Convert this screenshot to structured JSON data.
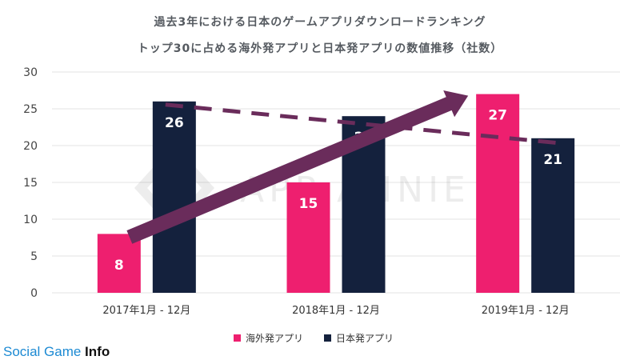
{
  "title_lines": [
    "過去3年における日本のゲームアプリダウンロードランキング",
    "トップ30に占める海外発アプリと日本発アプリの数値推移（社数）"
  ],
  "watermark": "APP ANNIE",
  "branding": {
    "part1": "Social Game ",
    "part2": "Info"
  },
  "colors": {
    "overseas": "#ee1f6f",
    "japan": "#14213d",
    "arrow": "#6a2c5b",
    "grid": "#e3e3e3"
  },
  "chart_data": {
    "type": "bar",
    "categories": [
      "2017年1月 - 12月",
      "2018年1月 - 12月",
      "2019年1月 - 12月"
    ],
    "series": [
      {
        "name": "海外発アプリ",
        "values": [
          8,
          15,
          27
        ]
      },
      {
        "name": "日本発アプリ",
        "values": [
          26,
          24,
          21
        ]
      }
    ],
    "y_ticks": [
      0,
      5,
      10,
      15,
      20,
      25,
      30
    ],
    "ylim": [
      0,
      30
    ],
    "grid": true,
    "legend_position": "bottom",
    "annotations": [
      {
        "type": "solid-arrow",
        "series": "海外発アプリ",
        "trend": "up"
      },
      {
        "type": "dashed-trend",
        "series": "日本発アプリ",
        "trend": "down"
      }
    ]
  }
}
